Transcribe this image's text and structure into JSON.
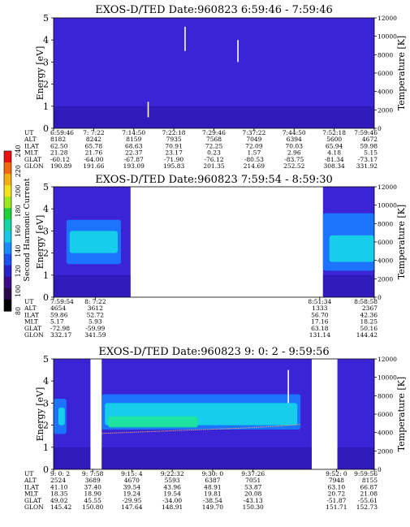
{
  "colors": {
    "background": "#ffffff",
    "spectrogram_base": "#3b24d6",
    "spectrogram_dark": "#2a12a8",
    "band_blue": "#1a7cff",
    "band_cyan": "#16d6e8",
    "band_green": "#1ee69a",
    "data_gap": "#ffffff"
  },
  "colorbar": {
    "title": "Second Harmonic Current",
    "ticks": [
      "240",
      "220",
      "200",
      "180",
      "160",
      "140",
      "120",
      "100",
      "80"
    ],
    "colors": [
      "#e81010",
      "#f06a10",
      "#f2b010",
      "#f5e21c",
      "#9ce81a",
      "#1ed03a",
      "#16d6a8",
      "#16c8e8",
      "#1a8cff",
      "#1a50f0",
      "#2a20c8",
      "#3a0c8a",
      "#2a0a4a",
      "#000000"
    ]
  },
  "chart_data": [
    {
      "type": "heatmap",
      "title": "EXOS-D/TED   Date:960823   6:59:46 - 7:59:46",
      "ylabel": "Energy [eV]",
      "y2label": "Temperature [K]",
      "yticks": [
        "0",
        "1",
        "2",
        "3",
        "4",
        "5"
      ],
      "ylim": [
        0,
        5
      ],
      "y2ticks": [
        "0",
        "2000",
        "4000",
        "6000",
        "8000",
        "10000",
        "12000"
      ],
      "y2lim": [
        0,
        12000
      ],
      "data_coverage": [
        [
          0.0,
          1.0
        ]
      ],
      "bands": [],
      "streaks": [
        {
          "x": 0.295,
          "y0": 0.5,
          "y1": 1.2
        },
        {
          "x": 0.41,
          "y0": 3.5,
          "y1": 4.6
        },
        {
          "x": 0.575,
          "y0": 3.0,
          "y1": 4.0
        }
      ],
      "table": {
        "labels": [
          "UT",
          "ALT",
          "ILAT",
          "MLT",
          "GLAT",
          "GLON"
        ],
        "columns": [
          {
            "pos": 0.0,
            "values": [
              "6:59:46",
              "8182",
              "62.50",
              "21.28",
              "-60.12",
              "190.89"
            ]
          },
          {
            "pos": 0.125,
            "values": [
              "7: 7:22",
              "8242",
              "65.78",
              "21.76",
              "-64.00",
              "191.66"
            ]
          },
          {
            "pos": 0.25,
            "values": [
              "7:14:50",
              "8159",
              "68.63",
              "22.37",
              "-67.87",
              "193.09"
            ]
          },
          {
            "pos": 0.375,
            "values": [
              "7:22:18",
              "7935",
              "70.91",
              "23.17",
              "-71.90",
              "195.83"
            ]
          },
          {
            "pos": 0.5,
            "values": [
              "7:29:46",
              "7568",
              "72.25",
              "0.23",
              "-76.12",
              "201.35"
            ]
          },
          {
            "pos": 0.625,
            "values": [
              "7:37:22",
              "7049",
              "72.09",
              "1.57",
              "-80.53",
              "214.69"
            ]
          },
          {
            "pos": 0.75,
            "values": [
              "7:44:50",
              "6394",
              "70.03",
              "2.96",
              "-83.75",
              "252.52"
            ]
          },
          {
            "pos": 0.875,
            "values": [
              "7:52:18",
              "5600",
              "65.94",
              "4.18",
              "-81.34",
              "308.34"
            ]
          },
          {
            "pos": 1.0,
            "values": [
              "7:59:46",
              "4672",
              "59.98",
              "5.15",
              "-73.17",
              "331.92"
            ]
          }
        ]
      }
    },
    {
      "type": "heatmap",
      "title": "EXOS-D/TED   Date:960823   7:59:54 - 8:59:30",
      "ylabel": "Energy [eV]",
      "y2label": "Temperature [K]",
      "yticks": [
        "0",
        "1",
        "2",
        "3",
        "4",
        "5"
      ],
      "ylim": [
        0,
        5
      ],
      "y2ticks": [
        "0",
        "2000",
        "4000",
        "6000",
        "8000",
        "10000",
        "12000"
      ],
      "y2lim": [
        0,
        12000
      ],
      "data_coverage": [
        [
          0.0,
          0.24
        ],
        [
          0.84,
          1.0
        ]
      ],
      "bands": [
        {
          "x0": 0.04,
          "x1": 0.21,
          "y0": 1.5,
          "y1": 3.5,
          "color_key": "band_blue"
        },
        {
          "x0": 0.05,
          "x1": 0.2,
          "y0": 2.0,
          "y1": 3.0,
          "color_key": "band_cyan"
        },
        {
          "x0": 0.84,
          "x1": 1.0,
          "y0": 1.2,
          "y1": 3.8,
          "color_key": "band_blue"
        },
        {
          "x0": 0.86,
          "x1": 1.0,
          "y0": 1.6,
          "y1": 2.8,
          "color_key": "band_cyan"
        }
      ],
      "streaks": [],
      "table": {
        "labels": [
          "UT",
          "ALT",
          "ILAT",
          "MLT",
          "GLAT",
          "GLON"
        ],
        "columns": [
          {
            "pos": 0.0,
            "values": [
              "7:59:54",
              "4654",
              "59.86",
              "5.17",
              "-72.98",
              "332.17"
            ]
          },
          {
            "pos": 0.13,
            "values": [
              "8: 7:22",
              "3612",
              "52.72",
              "5.93",
              "-59.99",
              "341.59"
            ]
          },
          {
            "pos": 0.83,
            "values": [
              "8:51:34",
              "1333",
              "56.70",
              "17.16",
              "63.18",
              "131.14"
            ]
          },
          {
            "pos": 1.0,
            "values": [
              "8:58:58",
              "2367",
              "42.36",
              "18.25",
              "50.16",
              "144.42"
            ]
          }
        ]
      }
    },
    {
      "type": "heatmap",
      "title": "EXOS-D/TED   Date:960823   9: 0: 2 - 9:59:56",
      "ylabel": "Energy [eV]",
      "y2label": "Temperature [K]",
      "yticks": [
        "0",
        "1",
        "2",
        "3",
        "4",
        "5"
      ],
      "ylim": [
        0,
        5
      ],
      "y2ticks": [
        "0",
        "2000",
        "4000",
        "6000",
        "8000",
        "10000",
        "12000"
      ],
      "y2lim": [
        0,
        12000
      ],
      "data_coverage": [
        [
          0.0,
          0.115
        ],
        [
          0.15,
          0.805
        ],
        [
          0.885,
          1.0
        ]
      ],
      "bands": [
        {
          "x0": 0.0,
          "x1": 0.04,
          "y0": 1.6,
          "y1": 3.2,
          "color_key": "band_blue"
        },
        {
          "x0": 0.015,
          "x1": 0.035,
          "y0": 2.0,
          "y1": 2.8,
          "color_key": "band_cyan"
        },
        {
          "x0": 0.15,
          "x1": 0.77,
          "y0": 1.8,
          "y1": 3.4,
          "color_key": "band_blue"
        },
        {
          "x0": 0.16,
          "x1": 0.76,
          "y0": 2.0,
          "y1": 3.0,
          "color_key": "band_cyan"
        },
        {
          "x0": 0.17,
          "x1": 0.45,
          "y0": 1.9,
          "y1": 2.4,
          "color_key": "band_green"
        }
      ],
      "streaks": [
        {
          "x": 0.732,
          "y0": 3.0,
          "y1": 4.5
        }
      ],
      "temperature_curve": {
        "x": [
          0.15,
          0.3,
          0.45,
          0.6,
          0.7,
          0.77
        ],
        "y": [
          3900,
          4100,
          4300,
          4500,
          4700,
          4900
        ]
      },
      "table": {
        "labels": [
          "UT",
          "ALT",
          "ILAT",
          "MLT",
          "GLAT",
          "GLON"
        ],
        "columns": [
          {
            "pos": 0.0,
            "values": [
              "9: 0: 2",
              "2524",
              "41.10",
              "18.35",
              "49.02",
              "145.42"
            ]
          },
          {
            "pos": 0.122,
            "values": [
              "9: 7:58",
              "3689",
              "37.40",
              "18.90",
              "45.55",
              "150.80"
            ]
          },
          {
            "pos": 0.244,
            "values": [
              "9:15: 4",
              "4670",
              "39.54",
              "19.24",
              "-29.95",
              "147.64"
            ]
          },
          {
            "pos": 0.37,
            "values": [
              "9:22:32",
              "5593",
              "43.96",
              "19.54",
              "-34.00",
              "148.91"
            ]
          },
          {
            "pos": 0.496,
            "values": [
              "9:30: 0",
              "6387",
              "48.91",
              "19.81",
              "-38.54",
              "149.70"
            ]
          },
          {
            "pos": 0.622,
            "values": [
              "9:37:26",
              "7051",
              "53.87",
              "20.08",
              "-43.13",
              "150.30"
            ]
          },
          {
            "pos": 0.882,
            "values": [
              "9:52: 0",
              "7948",
              "63.10",
              "20.72",
              "-51.87",
              "151.71"
            ]
          },
          {
            "pos": 1.0,
            "values": [
              "9:59:56",
              "8155",
              "66.87",
              "21.08",
              "-55.61",
              "152.73"
            ]
          }
        ]
      }
    }
  ]
}
